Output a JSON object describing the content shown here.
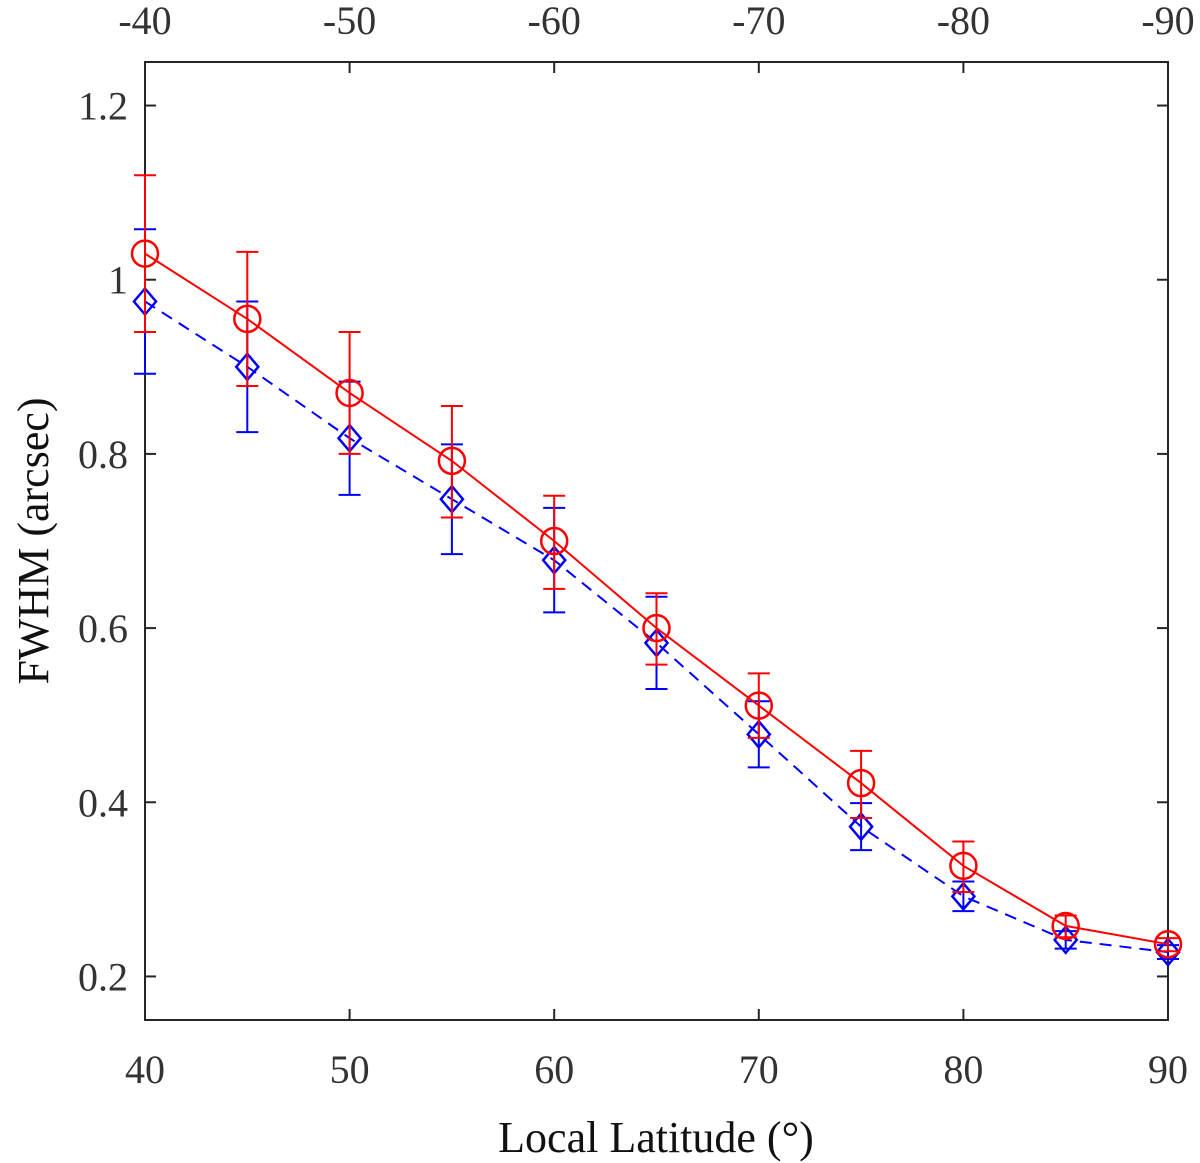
{
  "chart_data": {
    "type": "line",
    "title": "",
    "xlabel": "Local Latitude (°)",
    "ylabel": "FWHM (arcsec)",
    "xlim": [
      40,
      90
    ],
    "ylim": [
      0.15,
      1.25
    ],
    "x_ticks": [
      40,
      50,
      60,
      70,
      80,
      90
    ],
    "x_tick_labels": [
      "40",
      "50",
      "60",
      "70",
      "80",
      "90"
    ],
    "y_ticks": [
      0.2,
      0.4,
      0.6,
      0.8,
      1.0,
      1.2
    ],
    "y_tick_labels": [
      "0.2",
      "0.4",
      "0.6",
      "0.8",
      "1",
      "1.2"
    ],
    "top_axis_ticks": [
      40,
      50,
      60,
      70,
      80,
      90
    ],
    "top_axis_tick_labels": [
      "-40",
      "-50",
      "-60",
      "-70",
      "-80",
      "-90"
    ],
    "grid": false,
    "x": [
      40,
      45,
      50,
      55,
      60,
      65,
      70,
      75,
      80,
      85,
      90
    ],
    "series": [
      {
        "name": "red-circles",
        "color": "#ff0000",
        "marker": "circle",
        "line": "solid",
        "values": [
          1.03,
          0.955,
          0.87,
          0.792,
          0.7,
          0.6,
          0.511,
          0.422,
          0.327,
          0.258,
          0.237
        ],
        "err_low": [
          0.09,
          0.077,
          0.07,
          0.065,
          0.055,
          0.042,
          0.037,
          0.04,
          0.03,
          0.013,
          0.008
        ],
        "err_high": [
          0.09,
          0.077,
          0.07,
          0.063,
          0.052,
          0.04,
          0.037,
          0.037,
          0.028,
          0.012,
          0.007
        ]
      },
      {
        "name": "blue-diamonds",
        "color": "#0000ff",
        "marker": "diamond",
        "line": "dashed",
        "values": [
          0.975,
          0.9,
          0.818,
          0.748,
          0.678,
          0.583,
          0.478,
          0.372,
          0.292,
          0.242,
          0.228
        ],
        "err_low": [
          0.083,
          0.075,
          0.065,
          0.063,
          0.06,
          0.053,
          0.038,
          0.027,
          0.017,
          0.01,
          0.008
        ],
        "err_high": [
          0.083,
          0.075,
          0.065,
          0.063,
          0.06,
          0.053,
          0.038,
          0.027,
          0.017,
          0.01,
          0.008
        ]
      }
    ]
  }
}
